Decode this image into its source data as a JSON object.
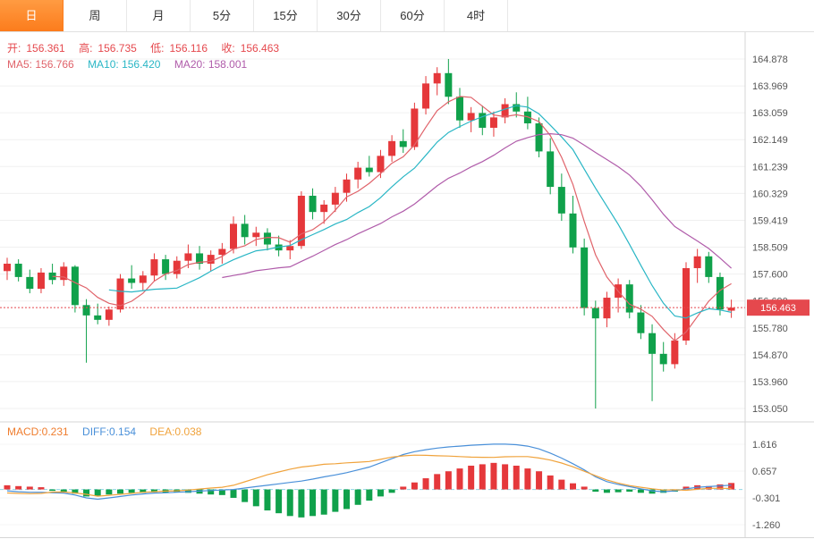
{
  "tabs": {
    "selected_index": 0,
    "items": [
      {
        "label": "日"
      },
      {
        "label": "周"
      },
      {
        "label": "月"
      },
      {
        "label": "5分"
      },
      {
        "label": "15分"
      },
      {
        "label": "30分"
      },
      {
        "label": "60分"
      },
      {
        "label": "4时"
      }
    ]
  },
  "legend": {
    "ohlc": [
      {
        "label": "开:",
        "value": "156.361"
      },
      {
        "label": "高:",
        "value": "156.735"
      },
      {
        "label": "低:",
        "value": "156.116"
      },
      {
        "label": "收:",
        "value": "156.463"
      }
    ],
    "ma5": "MA5: 156.766",
    "ma10": "MA10: 156.420",
    "ma20": "MA20: 158.001"
  },
  "macd_legend": {
    "macd": "MACD:0.231",
    "diff": "DIFF:0.154",
    "dea": "DEA:0.038"
  },
  "main": {
    "last_price": "156.463"
  },
  "colors": {
    "up": "#e5383b",
    "down": "#10a14b",
    "ma5": "#e0636a",
    "ma10": "#29b6c5",
    "ma20": "#b05caa",
    "diff": "#4a90d9",
    "dea": "#f0a33c",
    "macd_text": "#ef7d2e",
    "text_red": "#e5484d",
    "price_line": "#e5484d",
    "tab_accent": "#fc7c1c",
    "axis_text": "#555555"
  },
  "chart_data": [
    {
      "type": "candlestick",
      "timeframe": "日",
      "ohlc_current": {
        "open": 156.361,
        "high": 156.735,
        "low": 156.116,
        "close": 156.463
      },
      "ma_values": {
        "MA5": 156.766,
        "MA10": 156.42,
        "MA20": 158.001
      },
      "ma_periods": [
        5,
        10,
        20
      ],
      "last_price": 156.463,
      "ylim": [
        152.75,
        165.48
      ],
      "grid": "horizontal",
      "y_axis_labels": [
        "164.878",
        "163.969",
        "163.059",
        "162.149",
        "161.239",
        "160.329",
        "159.419",
        "158.509",
        "157.600",
        "156.690",
        "155.780",
        "154.870",
        "153.960",
        "153.050"
      ],
      "candles": [
        [
          157.7,
          158.15,
          157.4,
          157.95
        ],
        [
          157.95,
          158.1,
          157.35,
          157.5
        ],
        [
          157.5,
          157.75,
          156.95,
          157.1
        ],
        [
          157.1,
          157.8,
          156.95,
          157.65
        ],
        [
          157.65,
          157.95,
          157.25,
          157.4
        ],
        [
          157.4,
          158.0,
          157.2,
          157.85
        ],
        [
          157.85,
          157.9,
          156.3,
          156.55
        ],
        [
          156.55,
          156.75,
          154.6,
          156.2
        ],
        [
          156.2,
          156.6,
          155.9,
          156.05
        ],
        [
          156.05,
          156.5,
          155.85,
          156.4
        ],
        [
          156.4,
          157.6,
          156.3,
          157.45
        ],
        [
          157.45,
          157.9,
          157.1,
          157.3
        ],
        [
          157.3,
          157.7,
          157.05,
          157.55
        ],
        [
          157.55,
          158.3,
          157.35,
          158.1
        ],
        [
          158.1,
          158.25,
          157.4,
          157.6
        ],
        [
          157.6,
          158.2,
          157.45,
          158.05
        ],
        [
          158.05,
          158.6,
          157.8,
          158.3
        ],
        [
          158.3,
          158.55,
          157.75,
          157.95
        ],
        [
          157.95,
          158.4,
          157.7,
          158.25
        ],
        [
          158.25,
          158.65,
          157.95,
          158.45
        ],
        [
          158.45,
          159.55,
          158.3,
          159.3
        ],
        [
          159.3,
          159.6,
          158.6,
          158.85
        ],
        [
          158.85,
          159.2,
          158.55,
          159.0
        ],
        [
          159.0,
          159.15,
          158.4,
          158.6
        ],
        [
          158.6,
          158.9,
          158.2,
          158.4
        ],
        [
          158.4,
          158.75,
          158.1,
          158.55
        ],
        [
          158.55,
          160.4,
          158.45,
          160.25
        ],
        [
          160.25,
          160.5,
          159.45,
          159.7
        ],
        [
          159.7,
          160.1,
          159.3,
          159.95
        ],
        [
          159.95,
          160.55,
          159.7,
          160.35
        ],
        [
          160.35,
          161.0,
          160.05,
          160.8
        ],
        [
          160.8,
          161.4,
          160.5,
          161.2
        ],
        [
          161.2,
          161.6,
          160.9,
          161.05
        ],
        [
          161.05,
          161.8,
          160.85,
          161.6
        ],
        [
          161.6,
          162.3,
          161.4,
          162.1
        ],
        [
          162.1,
          162.5,
          161.7,
          161.9
        ],
        [
          161.9,
          163.4,
          161.8,
          163.2
        ],
        [
          163.2,
          164.3,
          163.0,
          164.05
        ],
        [
          164.05,
          164.6,
          163.65,
          164.4
        ],
        [
          164.4,
          164.878,
          163.35,
          163.6
        ],
        [
          163.6,
          163.9,
          162.55,
          162.8
        ],
        [
          162.8,
          163.25,
          162.4,
          163.05
        ],
        [
          163.05,
          163.3,
          162.3,
          162.55
        ],
        [
          162.55,
          163.1,
          162.25,
          162.9
        ],
        [
          162.9,
          163.55,
          162.7,
          163.35
        ],
        [
          163.35,
          163.75,
          162.9,
          163.1
        ],
        [
          163.1,
          163.6,
          162.5,
          162.7
        ],
        [
          162.7,
          162.9,
          161.55,
          161.75
        ],
        [
          161.75,
          162.2,
          160.3,
          160.55
        ],
        [
          160.55,
          161.0,
          159.4,
          159.65
        ],
        [
          159.65,
          160.25,
          158.3,
          158.5
        ],
        [
          158.5,
          158.8,
          156.2,
          156.45
        ],
        [
          156.45,
          156.7,
          153.05,
          156.1
        ],
        [
          156.1,
          157.0,
          155.8,
          156.8
        ],
        [
          156.8,
          157.45,
          156.3,
          157.25
        ],
        [
          157.25,
          157.4,
          156.1,
          156.3
        ],
        [
          156.3,
          156.55,
          155.4,
          155.6
        ],
        [
          155.6,
          155.9,
          153.3,
          154.9
        ],
        [
          154.9,
          155.3,
          154.3,
          154.55
        ],
        [
          154.55,
          155.6,
          154.4,
          155.35
        ],
        [
          155.35,
          158.0,
          155.2,
          157.8
        ],
        [
          157.8,
          158.45,
          157.3,
          158.2
        ],
        [
          158.2,
          158.35,
          157.3,
          157.5
        ],
        [
          157.5,
          157.65,
          156.2,
          156.4
        ],
        [
          156.361,
          156.735,
          156.116,
          156.463
        ]
      ]
    },
    {
      "type": "macd",
      "values": {
        "macd": 0.231,
        "diff": 0.154,
        "dea": 0.038
      },
      "ylim": [
        -1.74,
        2.1
      ],
      "y_axis_labels": [
        "1.616",
        "0.657",
        "-0.301",
        "-1.260"
      ],
      "hist": [
        0.15,
        0.12,
        0.1,
        0.08,
        -0.05,
        -0.08,
        -0.15,
        -0.25,
        -0.22,
        -0.18,
        -0.15,
        -0.12,
        -0.12,
        -0.1,
        -0.12,
        -0.1,
        -0.12,
        -0.15,
        -0.18,
        -0.2,
        -0.3,
        -0.45,
        -0.6,
        -0.75,
        -0.85,
        -0.95,
        -1.0,
        -0.95,
        -0.9,
        -0.8,
        -0.7,
        -0.55,
        -0.4,
        -0.25,
        -0.12,
        0.1,
        0.25,
        0.4,
        0.55,
        0.65,
        0.75,
        0.85,
        0.9,
        0.95,
        0.9,
        0.85,
        0.75,
        0.65,
        0.5,
        0.35,
        0.22,
        0.1,
        -0.08,
        -0.12,
        -0.1,
        -0.08,
        -0.12,
        -0.15,
        -0.12,
        -0.08,
        0.1,
        0.15,
        0.12,
        0.18,
        0.231
      ],
      "diff": [
        -0.05,
        -0.08,
        -0.1,
        -0.1,
        -0.12,
        -0.13,
        -0.2,
        -0.3,
        -0.35,
        -0.3,
        -0.25,
        -0.2,
        -0.16,
        -0.13,
        -0.12,
        -0.1,
        -0.08,
        -0.06,
        -0.04,
        -0.02,
        0.0,
        0.05,
        0.1,
        0.15,
        0.2,
        0.25,
        0.3,
        0.37,
        0.45,
        0.52,
        0.6,
        0.7,
        0.8,
        0.95,
        1.1,
        1.25,
        1.35,
        1.42,
        1.48,
        1.52,
        1.55,
        1.58,
        1.6,
        1.62,
        1.62,
        1.6,
        1.55,
        1.45,
        1.3,
        1.12,
        0.92,
        0.7,
        0.45,
        0.28,
        0.18,
        0.1,
        0.02,
        -0.05,
        -0.08,
        -0.05,
        0.02,
        0.08,
        0.1,
        0.13,
        0.154
      ],
      "dea": [
        -0.125,
        -0.14,
        -0.15,
        -0.14,
        -0.095,
        -0.09,
        -0.125,
        -0.175,
        -0.24,
        -0.21,
        -0.175,
        -0.14,
        -0.1,
        -0.08,
        -0.06,
        -0.05,
        -0.02,
        0.015,
        0.05,
        0.08,
        0.15,
        0.275,
        0.4,
        0.525,
        0.625,
        0.725,
        0.8,
        0.845,
        0.9,
        0.92,
        0.95,
        0.975,
        1.0,
        1.075,
        1.16,
        1.2,
        1.225,
        1.22,
        1.205,
        1.195,
        1.175,
        1.155,
        1.15,
        1.145,
        1.17,
        1.175,
        1.175,
        1.125,
        1.05,
        0.945,
        0.81,
        0.65,
        0.49,
        0.34,
        0.23,
        0.14,
        0.08,
        0.025,
        -0.02,
        -0.01,
        -0.03,
        0.005,
        0.04,
        0.04,
        0.038
      ]
    }
  ]
}
